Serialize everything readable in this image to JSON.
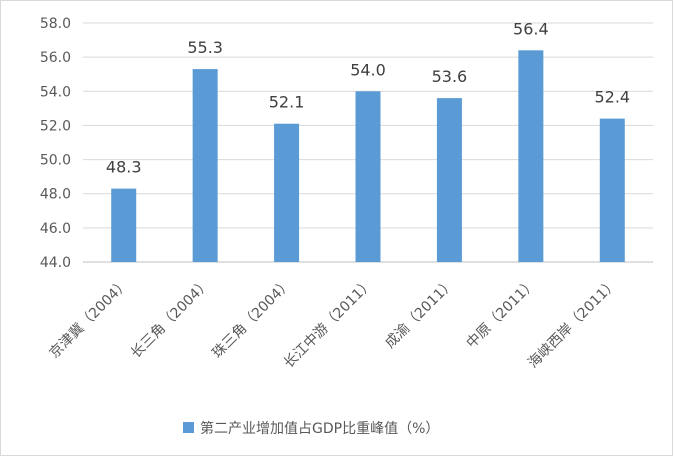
{
  "chart_data": {
    "type": "bar",
    "categories": [
      "京津冀（2004）",
      "长三角（2004）",
      "珠三角（2004）",
      "长江中游（2011）",
      "成渝（2011）",
      "中原（2011）",
      "海峡西岸（2011）"
    ],
    "values": [
      48.3,
      55.3,
      52.1,
      54.0,
      53.6,
      56.4,
      52.4
    ],
    "value_labels": [
      "48.3",
      "55.3",
      "52.1",
      "54.0",
      "53.6",
      "56.4",
      "52.4"
    ],
    "series": [
      {
        "name": "第二产业增加值占GDP比重峰值（%）",
        "values": [
          48.3,
          55.3,
          52.1,
          54.0,
          53.6,
          56.4,
          52.4
        ]
      }
    ],
    "yticks": [
      "44.0",
      "46.0",
      "48.0",
      "50.0",
      "52.0",
      "54.0",
      "56.0",
      "58.0"
    ],
    "ylim": [
      44,
      58
    ],
    "title": "",
    "xlabel": "",
    "ylabel": "",
    "grid": true,
    "legend": "bottom",
    "bar_color": "#5b9bd5"
  }
}
